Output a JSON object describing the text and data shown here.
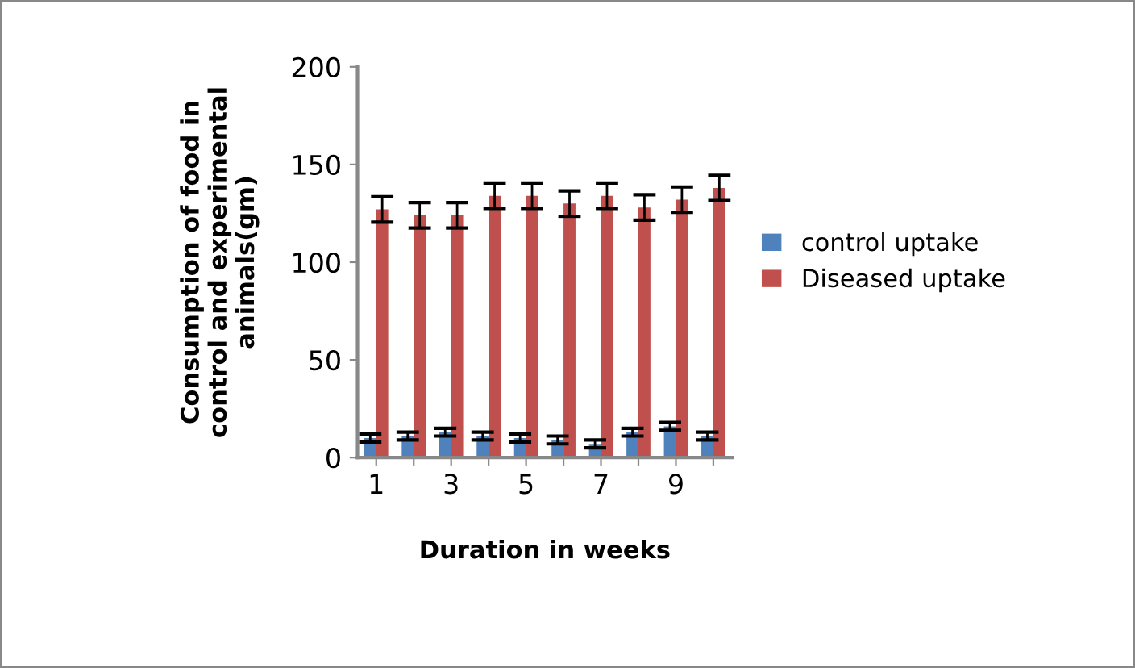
{
  "chart_data": {
    "type": "bar",
    "xlabel": "Duration in weeks",
    "ylabel": "Consumption of food in\ncontrol and experimental\nanimals(gm)",
    "categories": [
      "1",
      null,
      "3",
      null,
      "5",
      null,
      "7",
      null,
      "9",
      null
    ],
    "series": [
      {
        "name": "control uptake",
        "color": "#4f81bd",
        "values": [
          10,
          11,
          13,
          11,
          10,
          9,
          7,
          13,
          16,
          11
        ],
        "errors": [
          2,
          2,
          2,
          2,
          2,
          2,
          2,
          2,
          2,
          2
        ]
      },
      {
        "name": "Diseased uptake",
        "color": "#c0504d",
        "values": [
          127,
          124,
          124,
          134,
          134,
          130,
          134,
          128,
          132,
          138
        ],
        "errors": [
          6.5,
          6.5,
          6.5,
          6.5,
          6.5,
          6.5,
          6.5,
          6.5,
          6.5,
          6.5
        ]
      }
    ],
    "ylim": [
      0,
      200
    ],
    "yticks": [
      0,
      50,
      100,
      150,
      200
    ],
    "grid": false,
    "legend": "right"
  }
}
